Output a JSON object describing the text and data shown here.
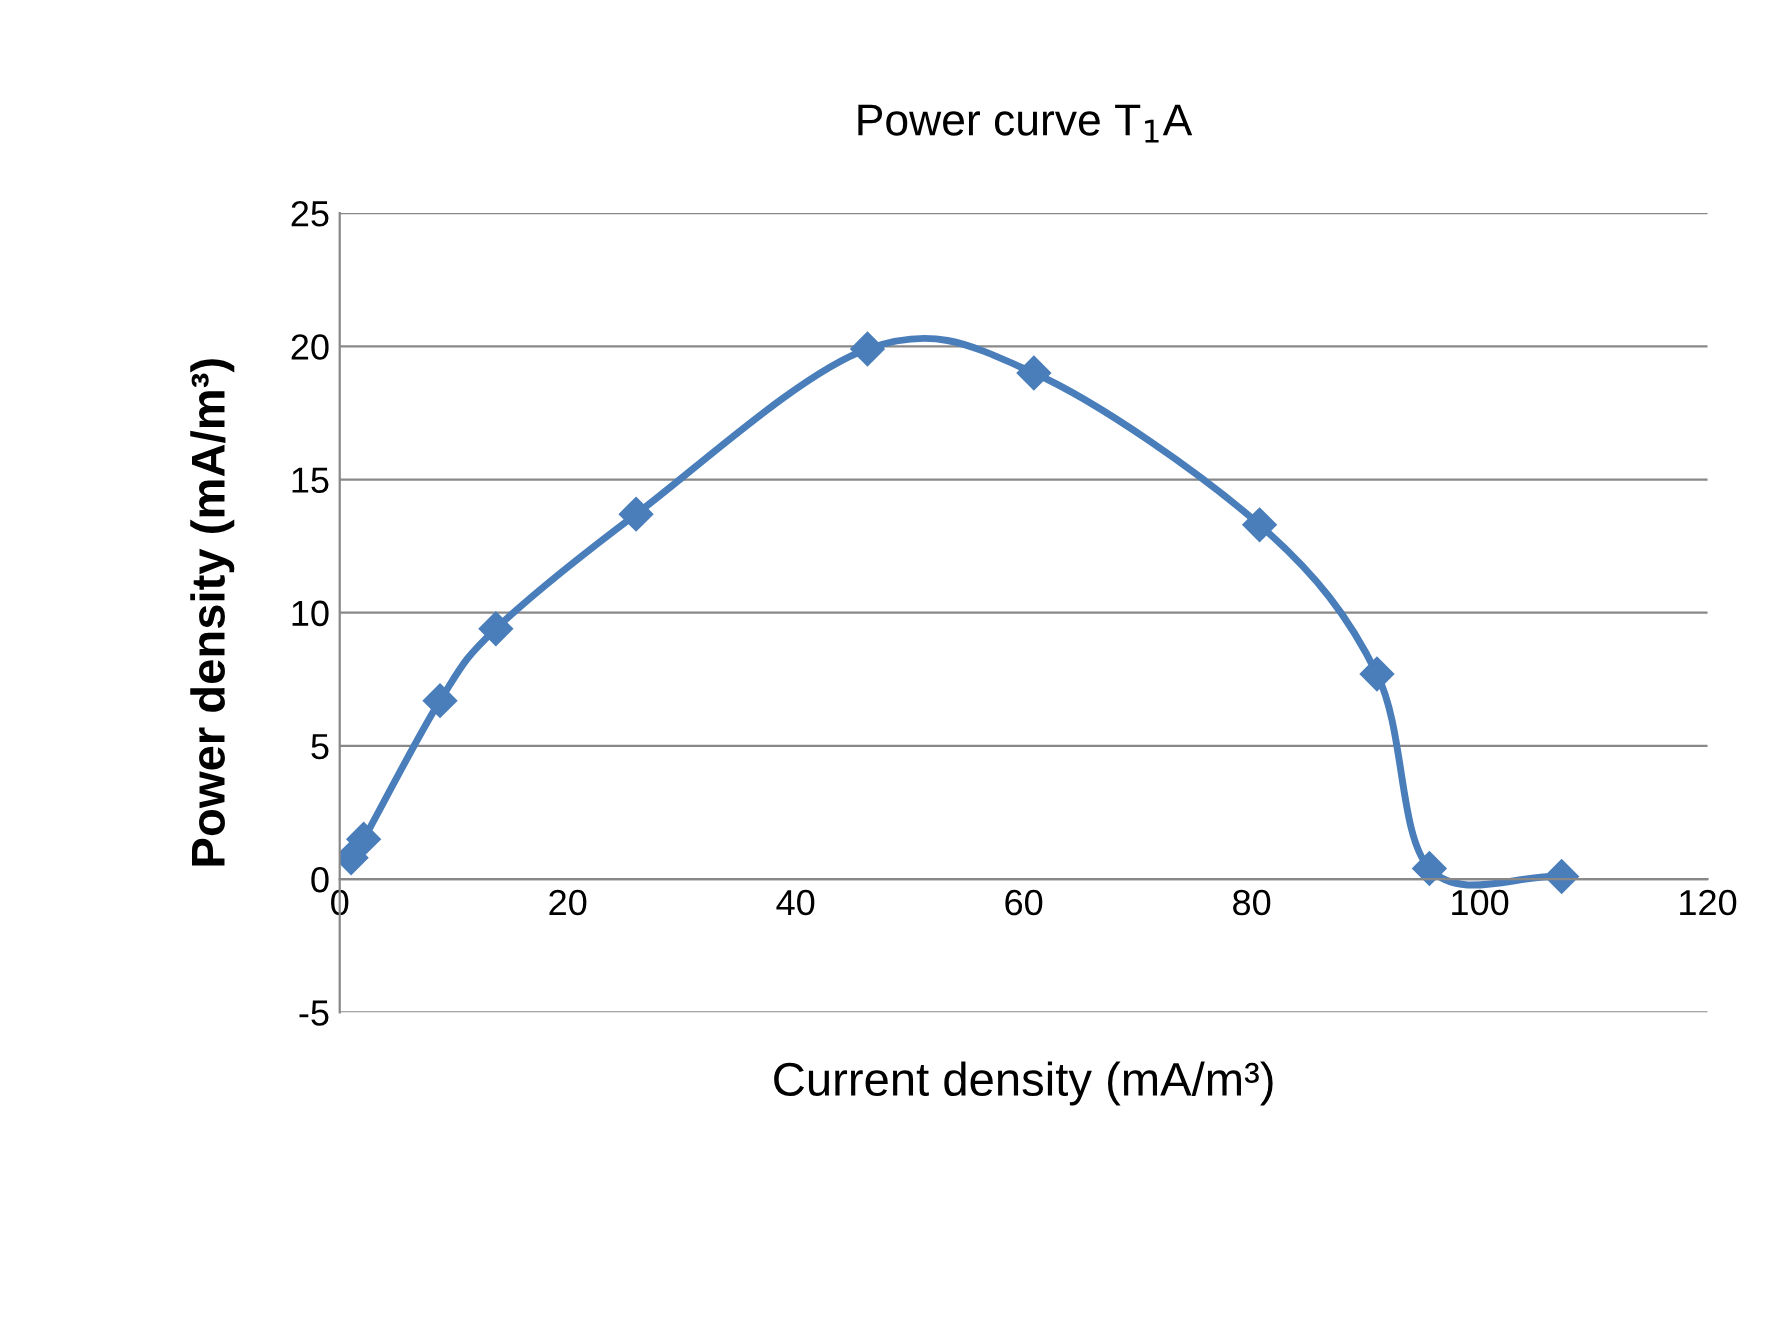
{
  "chart_data": {
    "type": "line",
    "title": "Power curve T$_{1}$A",
    "xlabel": "Current density (mA/m³)",
    "ylabel": "Power density (mA/m³)",
    "x": [
      1.0,
      2.1,
      8.8,
      13.7,
      26,
      46.3,
      60.9,
      80.7,
      91,
      95.6,
      107.2
    ],
    "series": [
      {
        "color": "#4a7ebb",
        "values": [
          0.8,
          1.5,
          6.7,
          9.4,
          13.7,
          19.9,
          19.0,
          13.3,
          7.7,
          0.4,
          0.1
        ]
      }
    ],
    "xlim": [
      0,
      120
    ],
    "xticks": [
      0,
      20,
      40,
      60,
      80,
      100,
      120
    ],
    "ylim": [
      -5,
      25
    ],
    "yticks": [
      -5,
      0,
      5,
      10,
      15,
      20,
      25
    ],
    "grid": "y",
    "marker": "diamond",
    "line_style": "solid"
  }
}
